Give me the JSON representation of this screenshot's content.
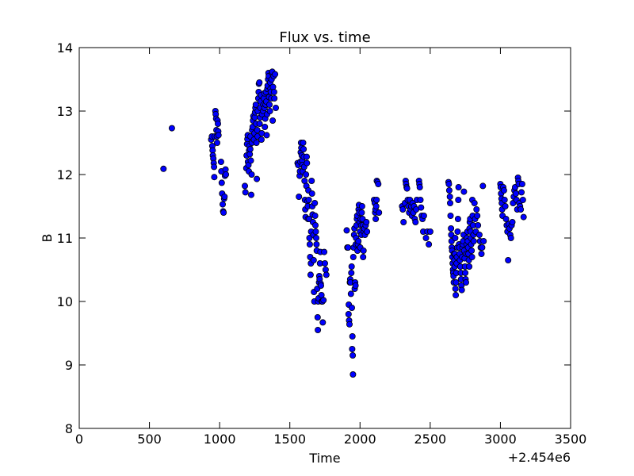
{
  "chart_data": {
    "type": "scatter",
    "title": "Flux vs. time",
    "xlabel": "Time",
    "ylabel": "B",
    "x_offset_label": "+2.454e6",
    "xlim": [
      0,
      3500
    ],
    "ylim": [
      8,
      14
    ],
    "xticks": [
      0,
      500,
      1000,
      1500,
      2000,
      2500,
      3000,
      3500
    ],
    "yticks": [
      8,
      9,
      10,
      11,
      12,
      13,
      14
    ],
    "grid": false,
    "marker_color": "#0000ff",
    "marker_edge_color": "#000000",
    "points": [
      [
        600,
        12.09
      ],
      [
        660,
        12.73
      ],
      [
        940,
        12.55
      ],
      [
        945,
        12.6
      ],
      [
        948,
        12.45
      ],
      [
        950,
        12.38
      ],
      [
        952,
        12.3
      ],
      [
        955,
        12.25
      ],
      [
        958,
        12.18
      ],
      [
        960,
        12.12
      ],
      [
        962,
        11.96
      ],
      [
        965,
        12.6
      ],
      [
        970,
        13.0
      ],
      [
        972,
        12.95
      ],
      [
        975,
        12.88
      ],
      [
        977,
        12.7
      ],
      [
        980,
        12.6
      ],
      [
        982,
        12.5
      ],
      [
        985,
        12.85
      ],
      [
        988,
        12.8
      ],
      [
        990,
        12.68
      ],
      [
        992,
        12.62
      ],
      [
        1010,
        12.2
      ],
      [
        1012,
        12.05
      ],
      [
        1015,
        11.87
      ],
      [
        1018,
        11.7
      ],
      [
        1022,
        11.53
      ],
      [
        1025,
        11.42
      ],
      [
        1028,
        11.4
      ],
      [
        1032,
        11.62
      ],
      [
        1035,
        11.65
      ],
      [
        1038,
        11.98
      ],
      [
        1042,
        12.08
      ],
      [
        1045,
        12.0
      ],
      [
        1180,
        11.82
      ],
      [
        1184,
        11.72
      ],
      [
        1190,
        12.1
      ],
      [
        1192,
        12.3
      ],
      [
        1195,
        12.48
      ],
      [
        1198,
        12.56
      ],
      [
        1200,
        12.62
      ],
      [
        1202,
        12.2
      ],
      [
        1205,
        12.15
      ],
      [
        1208,
        12.05
      ],
      [
        1210,
        12.38
      ],
      [
        1212,
        12.45
      ],
      [
        1215,
        12.32
      ],
      [
        1218,
        12.4
      ],
      [
        1220,
        12.6
      ],
      [
        1222,
        12.22
      ],
      [
        1225,
        11.68
      ],
      [
        1228,
        12.0
      ],
      [
        1230,
        12.5
      ],
      [
        1232,
        12.7
      ],
      [
        1235,
        12.75
      ],
      [
        1238,
        12.85
      ],
      [
        1240,
        12.92
      ],
      [
        1245,
        12.55
      ],
      [
        1248,
        12.65
      ],
      [
        1250,
        12.9
      ],
      [
        1252,
        12.98
      ],
      [
        1255,
        13.05
      ],
      [
        1258,
        13.1
      ],
      [
        1260,
        12.8
      ],
      [
        1262,
        12.5
      ],
      [
        1265,
        11.93
      ],
      [
        1268,
        12.7
      ],
      [
        1270,
        12.6
      ],
      [
        1272,
        13.0
      ],
      [
        1275,
        13.2
      ],
      [
        1278,
        13.3
      ],
      [
        1280,
        13.43
      ],
      [
        1283,
        13.45
      ],
      [
        1285,
        12.8
      ],
      [
        1288,
        12.9
      ],
      [
        1290,
        13.05
      ],
      [
        1292,
        13.15
      ],
      [
        1295,
        13.25
      ],
      [
        1298,
        12.55
      ],
      [
        1300,
        12.65
      ],
      [
        1302,
        12.95
      ],
      [
        1310,
        13.0
      ],
      [
        1312,
        13.1
      ],
      [
        1315,
        13.2
      ],
      [
        1318,
        13.28
      ],
      [
        1320,
        13.05
      ],
      [
        1322,
        12.75
      ],
      [
        1325,
        12.88
      ],
      [
        1328,
        13.1
      ],
      [
        1330,
        13.3
      ],
      [
        1332,
        13.15
      ],
      [
        1335,
        12.62
      ],
      [
        1338,
        12.95
      ],
      [
        1340,
        13.35
      ],
      [
        1342,
        13.4
      ],
      [
        1345,
        13.5
      ],
      [
        1348,
        13.6
      ],
      [
        1350,
        13.55
      ],
      [
        1352,
        13.22
      ],
      [
        1355,
        13.1
      ],
      [
        1358,
        13.0
      ],
      [
        1360,
        13.45
      ],
      [
        1362,
        13.35
      ],
      [
        1365,
        13.3
      ],
      [
        1368,
        13.2
      ],
      [
        1370,
        13.5
      ],
      [
        1372,
        13.6
      ],
      [
        1375,
        13.62
      ],
      [
        1378,
        12.85
      ],
      [
        1380,
        13.38
      ],
      [
        1385,
        13.55
      ],
      [
        1388,
        13.3
      ],
      [
        1390,
        13.2
      ],
      [
        1395,
        13.58
      ],
      [
        1400,
        13.05
      ],
      [
        1555,
        12.18
      ],
      [
        1560,
        12.15
      ],
      [
        1565,
        11.65
      ],
      [
        1570,
        11.98
      ],
      [
        1572,
        12.05
      ],
      [
        1575,
        12.2
      ],
      [
        1578,
        12.35
      ],
      [
        1580,
        12.5
      ],
      [
        1582,
        12.42
      ],
      [
        1585,
        12.3
      ],
      [
        1588,
        12.22
      ],
      [
        1590,
        12.15
      ],
      [
        1592,
        12.05
      ],
      [
        1595,
        12.5
      ],
      [
        1598,
        12.4
      ],
      [
        1600,
        12.28
      ],
      [
        1602,
        12.12
      ],
      [
        1605,
        11.9
      ],
      [
        1608,
        11.6
      ],
      [
        1610,
        11.45
      ],
      [
        1612,
        11.33
      ],
      [
        1615,
        12.0
      ],
      [
        1618,
        11.82
      ],
      [
        1620,
        12.28
      ],
      [
        1622,
        12.18
      ],
      [
        1625,
        11.58
      ],
      [
        1628,
        11.5
      ],
      [
        1630,
        11.3
      ],
      [
        1632,
        11.75
      ],
      [
        1635,
        11.6
      ],
      [
        1638,
        11.3
      ],
      [
        1640,
        11.0
      ],
      [
        1642,
        10.9
      ],
      [
        1645,
        10.7
      ],
      [
        1648,
        10.42
      ],
      [
        1650,
        10.6
      ],
      [
        1652,
        11.1
      ],
      [
        1655,
        11.9
      ],
      [
        1658,
        11.7
      ],
      [
        1660,
        11.5
      ],
      [
        1662,
        11.37
      ],
      [
        1665,
        11.25
      ],
      [
        1668,
        11.05
      ],
      [
        1670,
        10.65
      ],
      [
        1672,
        10.15
      ],
      [
        1675,
        10.0
      ],
      [
        1678,
        11.55
      ],
      [
        1680,
        11.35
      ],
      [
        1682,
        11.2
      ],
      [
        1685,
        11.1
      ],
      [
        1688,
        11.0
      ],
      [
        1690,
        10.9
      ],
      [
        1692,
        10.8
      ],
      [
        1695,
        10.2
      ],
      [
        1698,
        9.75
      ],
      [
        1700,
        9.55
      ],
      [
        1702,
        10.0
      ],
      [
        1705,
        10.05
      ],
      [
        1708,
        10.3
      ],
      [
        1710,
        10.4
      ],
      [
        1712,
        10.35
      ],
      [
        1715,
        10.6
      ],
      [
        1718,
        10.78
      ],
      [
        1720,
        10.28
      ],
      [
        1722,
        10.25
      ],
      [
        1725,
        10.1
      ],
      [
        1728,
        10.0
      ],
      [
        1732,
        10.0
      ],
      [
        1735,
        9.67
      ],
      [
        1740,
        10.02
      ],
      [
        1745,
        10.78
      ],
      [
        1750,
        10.6
      ],
      [
        1755,
        10.5
      ],
      [
        1760,
        10.42
      ],
      [
        1905,
        11.12
      ],
      [
        1910,
        10.85
      ],
      [
        1915,
        10.85
      ],
      [
        1918,
        9.8
      ],
      [
        1920,
        9.95
      ],
      [
        1922,
        9.7
      ],
      [
        1925,
        9.64
      ],
      [
        1928,
        10.3
      ],
      [
        1930,
        10.35
      ],
      [
        1932,
        10.3
      ],
      [
        1935,
        10.12
      ],
      [
        1938,
        10.45
      ],
      [
        1940,
        10.55
      ],
      [
        1942,
        9.9
      ],
      [
        1944,
        9.25
      ],
      [
        1946,
        9.45
      ],
      [
        1948,
        9.15
      ],
      [
        1950,
        8.85
      ],
      [
        1952,
        10.7
      ],
      [
        1955,
        10.85
      ],
      [
        1958,
        11.05
      ],
      [
        1960,
        11.15
      ],
      [
        1962,
        10.2
      ],
      [
        1965,
        10.3
      ],
      [
        1968,
        10.25
      ],
      [
        1970,
        10.9
      ],
      [
        1972,
        11.0
      ],
      [
        1975,
        11.2
      ],
      [
        1978,
        11.3
      ],
      [
        1980,
        11.35
      ],
      [
        1982,
        10.8
      ],
      [
        1985,
        10.9
      ],
      [
        1988,
        10.95
      ],
      [
        1990,
        11.45
      ],
      [
        1992,
        11.52
      ],
      [
        1995,
        11.4
      ],
      [
        1998,
        11.25
      ],
      [
        2000,
        11.1
      ],
      [
        2002,
        10.85
      ],
      [
        2005,
        11.3
      ],
      [
        2008,
        11.2
      ],
      [
        2010,
        11.05
      ],
      [
        2012,
        11.4
      ],
      [
        2015,
        11.5
      ],
      [
        2018,
        11.3
      ],
      [
        2020,
        11.2
      ],
      [
        2022,
        10.7
      ],
      [
        2025,
        10.8
      ],
      [
        2028,
        11.1
      ],
      [
        2030,
        11.15
      ],
      [
        2035,
        11.05
      ],
      [
        2040,
        11.2
      ],
      [
        2045,
        11.25
      ],
      [
        2050,
        11.1
      ],
      [
        2100,
        11.6
      ],
      [
        2105,
        11.55
      ],
      [
        2108,
        11.4
      ],
      [
        2110,
        11.45
      ],
      [
        2112,
        11.3
      ],
      [
        2115,
        11.5
      ],
      [
        2118,
        11.6
      ],
      [
        2120,
        11.9
      ],
      [
        2125,
        11.88
      ],
      [
        2130,
        11.85
      ],
      [
        2135,
        11.4
      ],
      [
        2300,
        11.5
      ],
      [
        2305,
        11.45
      ],
      [
        2310,
        11.25
      ],
      [
        2320,
        11.55
      ],
      [
        2325,
        11.9
      ],
      [
        2328,
        11.85
      ],
      [
        2332,
        11.8
      ],
      [
        2335,
        11.78
      ],
      [
        2340,
        11.6
      ],
      [
        2345,
        11.5
      ],
      [
        2350,
        11.4
      ],
      [
        2355,
        11.6
      ],
      [
        2360,
        11.45
      ],
      [
        2365,
        11.5
      ],
      [
        2370,
        11.35
      ],
      [
        2375,
        11.55
      ],
      [
        2380,
        11.4
      ],
      [
        2385,
        11.5
      ],
      [
        2390,
        11.3
      ],
      [
        2395,
        11.25
      ],
      [
        2400,
        11.45
      ],
      [
        2405,
        11.6
      ],
      [
        2420,
        11.9
      ],
      [
        2423,
        11.85
      ],
      [
        2426,
        11.8
      ],
      [
        2430,
        11.6
      ],
      [
        2435,
        11.48
      ],
      [
        2440,
        11.35
      ],
      [
        2445,
        11.3
      ],
      [
        2450,
        11.1
      ],
      [
        2455,
        11.35
      ],
      [
        2470,
        11.0
      ],
      [
        2480,
        11.1
      ],
      [
        2490,
        10.9
      ],
      [
        2500,
        11.1
      ],
      [
        2630,
        11.88
      ],
      [
        2633,
        11.85
      ],
      [
        2636,
        11.75
      ],
      [
        2640,
        11.65
      ],
      [
        2642,
        11.55
      ],
      [
        2645,
        11.35
      ],
      [
        2648,
        11.15
      ],
      [
        2650,
        11.05
      ],
      [
        2652,
        10.95
      ],
      [
        2654,
        10.85
      ],
      [
        2656,
        10.8
      ],
      [
        2658,
        10.7
      ],
      [
        2660,
        10.6
      ],
      [
        2662,
        10.5
      ],
      [
        2664,
        10.45
      ],
      [
        2666,
        10.4
      ],
      [
        2668,
        10.3
      ],
      [
        2670,
        10.75
      ],
      [
        2672,
        10.65
      ],
      [
        2674,
        10.55
      ],
      [
        2676,
        10.75
      ],
      [
        2678,
        11.0
      ],
      [
        2680,
        10.2
      ],
      [
        2682,
        10.1
      ],
      [
        2684,
        10.3
      ],
      [
        2686,
        10.45
      ],
      [
        2688,
        10.6
      ],
      [
        2690,
        10.7
      ],
      [
        2692,
        10.85
      ],
      [
        2695,
        11.1
      ],
      [
        2698,
        11.3
      ],
      [
        2700,
        11.6
      ],
      [
        2702,
        11.8
      ],
      [
        2705,
        10.9
      ],
      [
        2708,
        10.85
      ],
      [
        2710,
        10.75
      ],
      [
        2712,
        10.65
      ],
      [
        2715,
        10.55
      ],
      [
        2718,
        10.45
      ],
      [
        2720,
        10.35
      ],
      [
        2722,
        10.25
      ],
      [
        2725,
        10.18
      ],
      [
        2728,
        10.7
      ],
      [
        2730,
        10.85
      ],
      [
        2732,
        10.9
      ],
      [
        2735,
        10.95
      ],
      [
        2738,
        11.05
      ],
      [
        2740,
        11.73
      ],
      [
        2742,
        10.8
      ],
      [
        2745,
        10.68
      ],
      [
        2748,
        10.55
      ],
      [
        2750,
        10.45
      ],
      [
        2752,
        10.35
      ],
      [
        2755,
        10.3
      ],
      [
        2758,
        10.75
      ],
      [
        2760,
        10.9
      ],
      [
        2762,
        11.0
      ],
      [
        2765,
        11.1
      ],
      [
        2768,
        10.95
      ],
      [
        2770,
        10.85
      ],
      [
        2772,
        10.75
      ],
      [
        2775,
        10.65
      ],
      [
        2778,
        10.55
      ],
      [
        2780,
        11.15
      ],
      [
        2782,
        11.25
      ],
      [
        2785,
        11.3
      ],
      [
        2788,
        11.1
      ],
      [
        2790,
        11.0
      ],
      [
        2792,
        10.9
      ],
      [
        2795,
        10.8
      ],
      [
        2798,
        10.7
      ],
      [
        2800,
        11.6
      ],
      [
        2802,
        11.35
      ],
      [
        2805,
        11.2
      ],
      [
        2808,
        11.05
      ],
      [
        2810,
        10.95
      ],
      [
        2815,
        11.55
      ],
      [
        2820,
        11.3
      ],
      [
        2825,
        11.1
      ],
      [
        2830,
        11.45
      ],
      [
        2835,
        11.35
      ],
      [
        2840,
        11.2
      ],
      [
        2850,
        11.05
      ],
      [
        2855,
        10.95
      ],
      [
        2860,
        10.85
      ],
      [
        2865,
        10.75
      ],
      [
        2870,
        10.85
      ],
      [
        2875,
        11.82
      ],
      [
        2880,
        10.95
      ],
      [
        3000,
        11.85
      ],
      [
        3002,
        11.8
      ],
      [
        3005,
        11.7
      ],
      [
        3008,
        11.62
      ],
      [
        3010,
        11.55
      ],
      [
        3012,
        11.45
      ],
      [
        3015,
        11.35
      ],
      [
        3020,
        11.8
      ],
      [
        3025,
        11.75
      ],
      [
        3030,
        11.6
      ],
      [
        3035,
        11.5
      ],
      [
        3040,
        11.3
      ],
      [
        3045,
        11.2
      ],
      [
        3050,
        11.1
      ],
      [
        3055,
        10.65
      ],
      [
        3060,
        11.22
      ],
      [
        3065,
        11.15
      ],
      [
        3070,
        11.05
      ],
      [
        3075,
        11.0
      ],
      [
        3080,
        11.2
      ],
      [
        3085,
        11.25
      ],
      [
        3090,
        11.55
      ],
      [
        3095,
        11.65
      ],
      [
        3100,
        11.75
      ],
      [
        3105,
        11.8
      ],
      [
        3110,
        11.7
      ],
      [
        3115,
        11.6
      ],
      [
        3120,
        11.45
      ],
      [
        3125,
        11.95
      ],
      [
        3128,
        11.9
      ],
      [
        3130,
        11.85
      ],
      [
        3135,
        11.55
      ],
      [
        3140,
        11.5
      ],
      [
        3145,
        11.45
      ],
      [
        3150,
        11.72
      ],
      [
        3155,
        11.85
      ],
      [
        3160,
        11.6
      ],
      [
        3165,
        11.33
      ]
    ]
  }
}
